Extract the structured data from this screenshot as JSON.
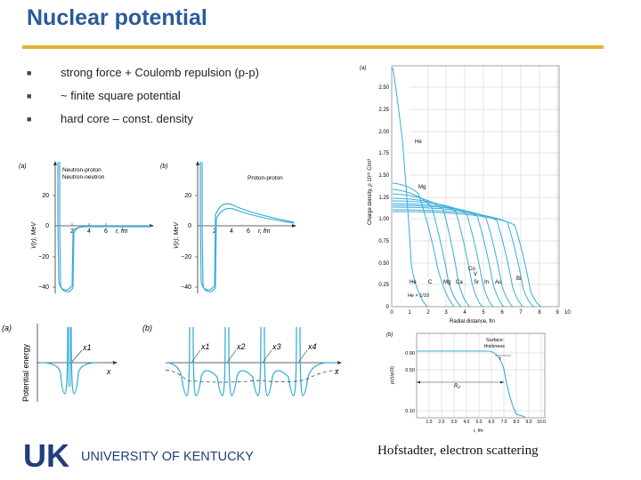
{
  "slide": {
    "title": "Nuclear potential",
    "bullets": [
      "strong force + Coulomb repulsion (p-p)",
      "~ finite square potential",
      "hard core – const. density"
    ],
    "caption": "Hofstadter, electron scattering",
    "logo": {
      "mark": "UK",
      "text": "UNIVERSITY OF KENTUCKY",
      "color": "#1f3e7a"
    },
    "accent_color": "#e2b233",
    "title_color": "#2a5a9a",
    "curve_color": "#3aaed8"
  },
  "fig_np": {
    "panel": "(a)",
    "legend": [
      "Neutron-proton",
      "Neutron-neutron"
    ],
    "ylabel": "V(r), MeV",
    "xlabel": "r, fm",
    "yticks": [
      "20",
      "0",
      "−20",
      "−40"
    ],
    "xticks": [
      "2",
      "4",
      "6"
    ]
  },
  "fig_pp": {
    "panel": "(b)",
    "legend": "Proton-proton",
    "ylabel": "V(r), MeV",
    "xlabel": "r, fm",
    "yticks": [
      "20",
      "0",
      "−20",
      "−40"
    ],
    "xticks": [
      "2",
      "4",
      "6"
    ]
  },
  "fig_wells": {
    "panel_a": "(a)",
    "panel_b": "(b)",
    "ylabel": "Potential energy",
    "x1": "x1",
    "labels": [
      "x1",
      "x2",
      "x3",
      "x4"
    ],
    "axis": "x"
  },
  "fig_density": {
    "panel": "(a)",
    "ylabel": "Charge density, ρ 10¹⁹ C/m³",
    "xlabel": "Radial distance, fm",
    "yticks": [
      "2.50",
      "2.25",
      "2.00",
      "1.75",
      "1.50",
      "1.25",
      "1.00",
      "0.75",
      "0.50",
      "0.25",
      "0"
    ],
    "xticks": [
      "0",
      "1",
      "2",
      "3",
      "4",
      "5",
      "6",
      "7",
      "8",
      "9",
      "10"
    ],
    "nuclei": [
      "He",
      "Mg",
      "He",
      "C",
      "Mg",
      "Ca",
      "Sr",
      "In",
      "Au",
      "Bi",
      "Co",
      "V"
    ],
    "scale_note": "He × 1/10"
  },
  "fig_surface": {
    "panel": "(b)",
    "ylabel": "ρ(r)/ρ(0)",
    "yticks": [
      "0.90",
      "0.50",
      "0.10"
    ],
    "xticks": [
      "1.0",
      "2.0",
      "3.0",
      "4.0",
      "5.0",
      "6.0",
      "7.0",
      "8.0",
      "9.0",
      "10.0"
    ],
    "xlabel": "r, fm",
    "surface_label": "Surface\nthickness",
    "surface_l1": "Surface",
    "surface_l2": "thickness",
    "t_label": "t",
    "r0_label": "R₀"
  }
}
